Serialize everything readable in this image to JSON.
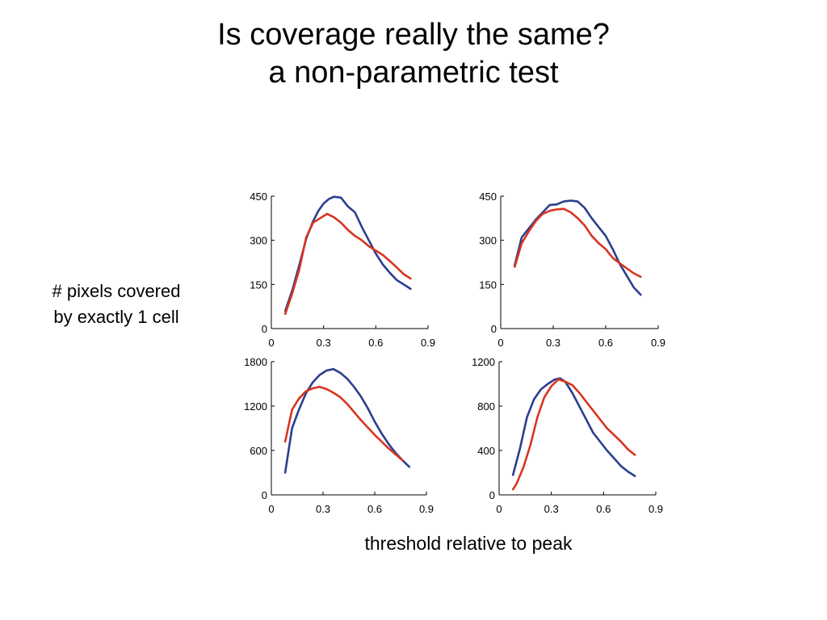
{
  "slide": {
    "title_line1": "Is coverage really the same?",
    "title_line2": "a non-parametric test",
    "side_label_line1": "# pixels covered",
    "side_label_line2": "by exactly 1 cell",
    "x_caption": "threshold relative to peak"
  },
  "colors": {
    "blue": "#2b3f8f",
    "red": "#d93420"
  },
  "chart_data": [
    {
      "type": "line",
      "xlim": [
        0,
        0.9
      ],
      "ylim": [
        0,
        450
      ],
      "xticks": [
        "0",
        "0.3",
        "0.6",
        "0.9"
      ],
      "yticks": [
        "0",
        "150",
        "300",
        "450"
      ],
      "series": [
        {
          "color": "#2b3f8f",
          "x": [
            0.08,
            0.12,
            0.16,
            0.2,
            0.24,
            0.27,
            0.3,
            0.33,
            0.36,
            0.4,
            0.44,
            0.48,
            0.52,
            0.56,
            0.6,
            0.64,
            0.68,
            0.72,
            0.76,
            0.8
          ],
          "y": [
            60,
            130,
            215,
            305,
            365,
            400,
            425,
            440,
            448,
            445,
            415,
            395,
            345,
            300,
            255,
            218,
            190,
            165,
            150,
            135
          ]
        },
        {
          "color": "#d93420",
          "x": [
            0.08,
            0.12,
            0.16,
            0.2,
            0.24,
            0.28,
            0.32,
            0.36,
            0.4,
            0.44,
            0.48,
            0.52,
            0.56,
            0.6,
            0.64,
            0.68,
            0.72,
            0.76,
            0.8
          ],
          "y": [
            50,
            120,
            200,
            310,
            360,
            375,
            390,
            378,
            360,
            335,
            315,
            300,
            280,
            265,
            250,
            230,
            208,
            185,
            170
          ]
        }
      ]
    },
    {
      "type": "line",
      "xlim": [
        0,
        0.9
      ],
      "ylim": [
        0,
        450
      ],
      "xticks": [
        "0",
        "0.3",
        "0.6",
        "0.9"
      ],
      "yticks": [
        "0",
        "150",
        "300",
        "450"
      ],
      "series": [
        {
          "color": "#2b3f8f",
          "x": [
            0.08,
            0.12,
            0.16,
            0.2,
            0.24,
            0.28,
            0.32,
            0.36,
            0.4,
            0.44,
            0.48,
            0.52,
            0.56,
            0.6,
            0.64,
            0.68,
            0.72,
            0.76,
            0.8
          ],
          "y": [
            215,
            310,
            340,
            370,
            395,
            420,
            422,
            432,
            435,
            432,
            410,
            375,
            345,
            315,
            270,
            220,
            180,
            140,
            115
          ]
        },
        {
          "color": "#d93420",
          "x": [
            0.08,
            0.12,
            0.16,
            0.2,
            0.24,
            0.28,
            0.32,
            0.36,
            0.4,
            0.44,
            0.48,
            0.52,
            0.56,
            0.6,
            0.64,
            0.68,
            0.72,
            0.76,
            0.8
          ],
          "y": [
            210,
            290,
            330,
            365,
            390,
            400,
            405,
            407,
            395,
            375,
            350,
            315,
            290,
            270,
            240,
            222,
            205,
            188,
            176
          ]
        }
      ]
    },
    {
      "type": "line",
      "xlim": [
        0,
        0.9
      ],
      "ylim": [
        0,
        1800
      ],
      "xticks": [
        "0",
        "0.3",
        "0.6",
        "0.9"
      ],
      "yticks": [
        "0",
        "600",
        "1200",
        "1800"
      ],
      "series": [
        {
          "color": "#2b3f8f",
          "x": [
            0.08,
            0.12,
            0.16,
            0.2,
            0.24,
            0.28,
            0.32,
            0.36,
            0.4,
            0.44,
            0.48,
            0.52,
            0.56,
            0.6,
            0.64,
            0.68,
            0.72,
            0.76,
            0.8
          ],
          "y": [
            300,
            900,
            1150,
            1370,
            1520,
            1620,
            1680,
            1700,
            1650,
            1570,
            1460,
            1330,
            1170,
            990,
            830,
            690,
            570,
            470,
            380
          ]
        },
        {
          "color": "#d93420",
          "x": [
            0.08,
            0.12,
            0.16,
            0.2,
            0.24,
            0.28,
            0.32,
            0.36,
            0.4,
            0.44,
            0.48,
            0.52,
            0.56,
            0.6,
            0.64,
            0.68,
            0.72,
            0.76
          ],
          "y": [
            720,
            1150,
            1300,
            1400,
            1440,
            1460,
            1430,
            1380,
            1320,
            1230,
            1120,
            1010,
            910,
            810,
            720,
            630,
            550,
            470
          ]
        }
      ]
    },
    {
      "type": "line",
      "xlim": [
        0,
        0.9
      ],
      "ylim": [
        0,
        1200
      ],
      "xticks": [
        "0",
        "0.3",
        "0.6",
        "0.9"
      ],
      "yticks": [
        "0",
        "400",
        "800",
        "1200"
      ],
      "series": [
        {
          "color": "#2b3f8f",
          "x": [
            0.08,
            0.12,
            0.16,
            0.2,
            0.24,
            0.28,
            0.32,
            0.35,
            0.38,
            0.42,
            0.46,
            0.5,
            0.54,
            0.58,
            0.62,
            0.66,
            0.7,
            0.74,
            0.78
          ],
          "y": [
            180,
            420,
            700,
            860,
            950,
            1000,
            1040,
            1050,
            1020,
            920,
            800,
            680,
            560,
            480,
            400,
            330,
            260,
            210,
            170
          ]
        },
        {
          "color": "#d93420",
          "x": [
            0.08,
            0.1,
            0.14,
            0.18,
            0.22,
            0.26,
            0.3,
            0.34,
            0.38,
            0.42,
            0.46,
            0.5,
            0.54,
            0.58,
            0.62,
            0.66,
            0.7,
            0.74,
            0.78
          ],
          "y": [
            50,
            100,
            250,
            450,
            700,
            880,
            980,
            1040,
            1020,
            990,
            920,
            840,
            760,
            680,
            600,
            540,
            480,
            410,
            360
          ]
        }
      ]
    }
  ]
}
